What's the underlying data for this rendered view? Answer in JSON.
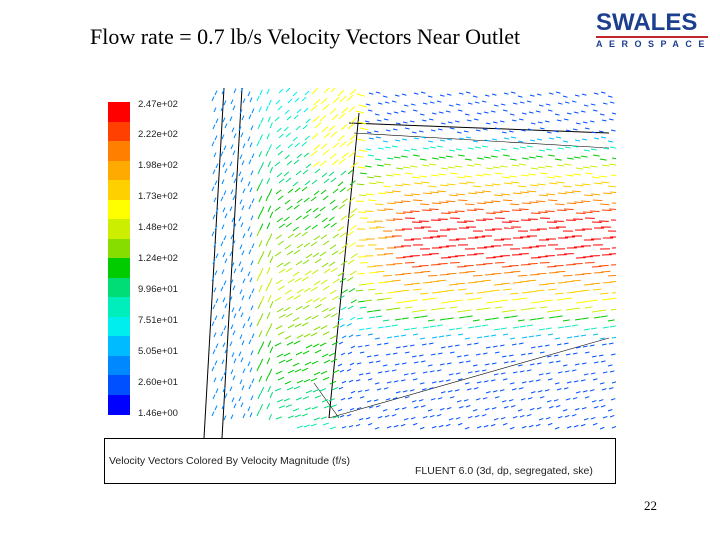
{
  "slide": {
    "title": "Flow rate = 0.7 lb/s Velocity Vectors Near Outlet",
    "page_number": "22"
  },
  "logo": {
    "top": "SWALES",
    "bottom": "AEROSPACE"
  },
  "figure": {
    "caption_left": "Velocity Vectors Colored By Velocity Magnitude (f/s)",
    "caption_right": "FLUENT 6.0 (3d, dp, segregated, ske)",
    "legend_labels": [
      "2.47e+02",
      "2.22e+02",
      "1.98e+02",
      "1.73e+02",
      "1.48e+02",
      "1.24e+02",
      "9.96e+01",
      "7.51e+01",
      "5.05e+01",
      "2.60e+01",
      "1.46e+00"
    ],
    "colormap": [
      "#ff0000",
      "#ff4000",
      "#ff8000",
      "#ffaa00",
      "#ffd000",
      "#ffff00",
      "#ccee00",
      "#88dd00",
      "#00cc00",
      "#00dd77",
      "#00eebb",
      "#00eeee",
      "#00bbff",
      "#0088ff",
      "#0050ff",
      "#0000ff"
    ]
  }
}
